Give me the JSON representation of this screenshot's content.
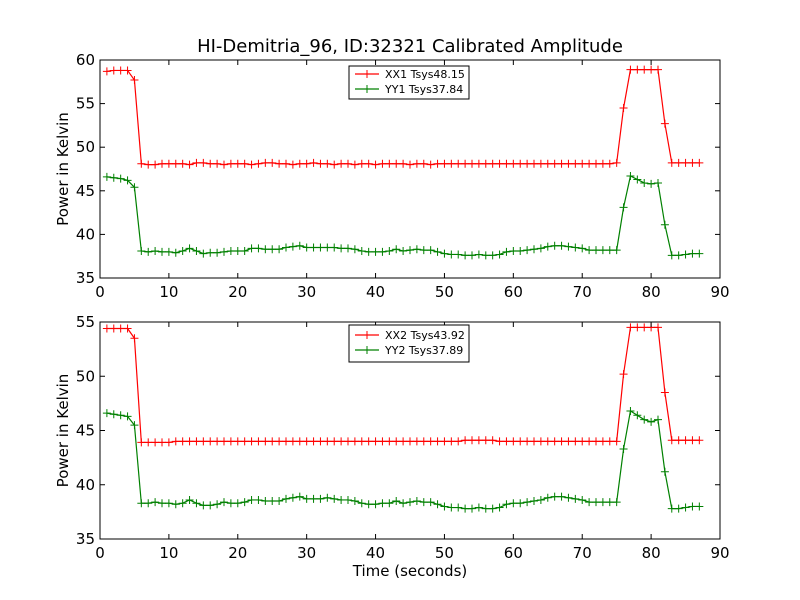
{
  "figure": {
    "title": "HI-Demitria_96, ID:32321 Calibrated Amplitude",
    "xlabel": "Time (seconds)"
  },
  "chart_data": [
    {
      "type": "line",
      "ylabel": "Power in Kelvin",
      "xlim": [
        0,
        90
      ],
      "ylim": [
        35,
        60
      ],
      "xticks": [
        0,
        10,
        20,
        30,
        40,
        50,
        60,
        70,
        80,
        90
      ],
      "yticks": [
        35,
        40,
        45,
        50,
        55,
        60
      ],
      "grid": false,
      "legend_position": "top-center",
      "x": [
        1,
        2,
        3,
        4,
        5,
        6,
        7,
        8,
        9,
        10,
        11,
        12,
        13,
        14,
        15,
        16,
        17,
        18,
        19,
        20,
        21,
        22,
        23,
        24,
        25,
        26,
        27,
        28,
        29,
        30,
        31,
        32,
        33,
        34,
        35,
        36,
        37,
        38,
        39,
        40,
        41,
        42,
        43,
        44,
        45,
        46,
        47,
        48,
        49,
        50,
        51,
        52,
        53,
        54,
        55,
        56,
        57,
        58,
        59,
        60,
        61,
        62,
        63,
        64,
        65,
        66,
        67,
        68,
        69,
        70,
        71,
        72,
        73,
        74,
        75,
        76,
        77,
        78,
        79,
        80,
        81,
        82,
        83,
        84,
        85,
        86,
        87
      ],
      "series": [
        {
          "name": "XX1 Tsys48.15",
          "color": "#ff0000",
          "values": [
            58.7,
            58.8,
            58.8,
            58.8,
            57.7,
            48.1,
            48.0,
            48.0,
            48.1,
            48.1,
            48.1,
            48.1,
            48.0,
            48.2,
            48.2,
            48.1,
            48.1,
            48.0,
            48.1,
            48.1,
            48.1,
            48.0,
            48.1,
            48.2,
            48.2,
            48.1,
            48.1,
            48.0,
            48.1,
            48.1,
            48.2,
            48.1,
            48.1,
            48.0,
            48.1,
            48.1,
            48.0,
            48.1,
            48.1,
            48.0,
            48.1,
            48.1,
            48.1,
            48.1,
            48.0,
            48.1,
            48.1,
            48.0,
            48.1,
            48.1,
            48.1,
            48.1,
            48.1,
            48.1,
            48.1,
            48.1,
            48.1,
            48.1,
            48.1,
            48.1,
            48.1,
            48.1,
            48.1,
            48.1,
            48.1,
            48.1,
            48.1,
            48.1,
            48.1,
            48.1,
            48.1,
            48.1,
            48.1,
            48.1,
            48.2,
            54.5,
            58.9,
            58.9,
            58.9,
            58.9,
            58.9,
            52.7,
            48.2,
            48.2,
            48.2,
            48.2,
            48.2
          ]
        },
        {
          "name": "YY1 Tsys37.84",
          "color": "#008000",
          "values": [
            46.6,
            46.5,
            46.4,
            46.2,
            45.4,
            38.1,
            38.0,
            38.1,
            38.0,
            38.0,
            37.9,
            38.1,
            38.4,
            38.1,
            37.8,
            37.9,
            37.9,
            38.0,
            38.1,
            38.1,
            38.1,
            38.4,
            38.4,
            38.3,
            38.3,
            38.3,
            38.5,
            38.6,
            38.7,
            38.5,
            38.5,
            38.5,
            38.5,
            38.5,
            38.4,
            38.4,
            38.3,
            38.1,
            38.0,
            38.0,
            38.0,
            38.1,
            38.3,
            38.1,
            38.2,
            38.3,
            38.2,
            38.2,
            38.0,
            37.8,
            37.7,
            37.7,
            37.6,
            37.6,
            37.7,
            37.6,
            37.6,
            37.7,
            38.0,
            38.1,
            38.1,
            38.2,
            38.3,
            38.4,
            38.6,
            38.7,
            38.7,
            38.6,
            38.5,
            38.4,
            38.2,
            38.2,
            38.2,
            38.2,
            38.2,
            43.1,
            46.7,
            46.3,
            45.9,
            45.8,
            45.9,
            41.1,
            37.6,
            37.6,
            37.7,
            37.8,
            37.8
          ]
        }
      ]
    },
    {
      "type": "line",
      "ylabel": "Power in Kelvin",
      "xlabel": "Time (seconds)",
      "xlim": [
        0,
        90
      ],
      "ylim": [
        35,
        55
      ],
      "xticks": [
        0,
        10,
        20,
        30,
        40,
        50,
        60,
        70,
        80,
        90
      ],
      "yticks": [
        35,
        40,
        45,
        50,
        55
      ],
      "grid": false,
      "legend_position": "top-center",
      "x": [
        1,
        2,
        3,
        4,
        5,
        6,
        7,
        8,
        9,
        10,
        11,
        12,
        13,
        14,
        15,
        16,
        17,
        18,
        19,
        20,
        21,
        22,
        23,
        24,
        25,
        26,
        27,
        28,
        29,
        30,
        31,
        32,
        33,
        34,
        35,
        36,
        37,
        38,
        39,
        40,
        41,
        42,
        43,
        44,
        45,
        46,
        47,
        48,
        49,
        50,
        51,
        52,
        53,
        54,
        55,
        56,
        57,
        58,
        59,
        60,
        61,
        62,
        63,
        64,
        65,
        66,
        67,
        68,
        69,
        70,
        71,
        72,
        73,
        74,
        75,
        76,
        77,
        78,
        79,
        80,
        81,
        82,
        83,
        84,
        85,
        86,
        87
      ],
      "series": [
        {
          "name": "XX2 Tsys43.92",
          "color": "#ff0000",
          "values": [
            54.4,
            54.4,
            54.4,
            54.4,
            53.5,
            43.9,
            43.9,
            43.9,
            43.9,
            43.9,
            44.0,
            44.0,
            44.0,
            44.0,
            44.0,
            44.0,
            44.0,
            44.0,
            44.0,
            44.0,
            44.0,
            44.0,
            44.0,
            44.0,
            44.0,
            44.0,
            44.0,
            44.0,
            44.0,
            44.0,
            44.0,
            44.0,
            44.0,
            44.0,
            44.0,
            44.0,
            44.0,
            44.0,
            44.0,
            44.0,
            44.0,
            44.0,
            44.0,
            44.0,
            44.0,
            44.0,
            44.0,
            44.0,
            44.0,
            44.0,
            44.0,
            44.0,
            44.1,
            44.1,
            44.1,
            44.1,
            44.1,
            44.0,
            44.0,
            44.0,
            44.0,
            44.0,
            44.0,
            44.0,
            44.0,
            44.0,
            44.0,
            44.0,
            44.0,
            44.0,
            44.0,
            44.0,
            44.0,
            44.0,
            44.0,
            50.2,
            54.5,
            54.5,
            54.5,
            54.5,
            54.5,
            48.5,
            44.1,
            44.1,
            44.1,
            44.1,
            44.1
          ]
        },
        {
          "name": "YY2 Tsys37.89",
          "color": "#008000",
          "values": [
            46.6,
            46.5,
            46.4,
            46.3,
            45.5,
            38.3,
            38.3,
            38.4,
            38.3,
            38.3,
            38.2,
            38.3,
            38.6,
            38.3,
            38.1,
            38.1,
            38.2,
            38.4,
            38.3,
            38.3,
            38.4,
            38.6,
            38.6,
            38.5,
            38.5,
            38.5,
            38.7,
            38.8,
            38.9,
            38.7,
            38.7,
            38.7,
            38.8,
            38.7,
            38.6,
            38.6,
            38.5,
            38.3,
            38.2,
            38.2,
            38.3,
            38.3,
            38.5,
            38.3,
            38.4,
            38.5,
            38.4,
            38.4,
            38.2,
            38.0,
            37.9,
            37.9,
            37.8,
            37.8,
            37.9,
            37.8,
            37.8,
            37.9,
            38.2,
            38.3,
            38.3,
            38.4,
            38.5,
            38.6,
            38.8,
            38.9,
            38.9,
            38.8,
            38.7,
            38.6,
            38.4,
            38.4,
            38.4,
            38.4,
            38.4,
            43.3,
            46.8,
            46.4,
            46.0,
            45.8,
            46.0,
            41.2,
            37.8,
            37.8,
            37.9,
            38.0,
            38.0
          ]
        }
      ]
    }
  ]
}
